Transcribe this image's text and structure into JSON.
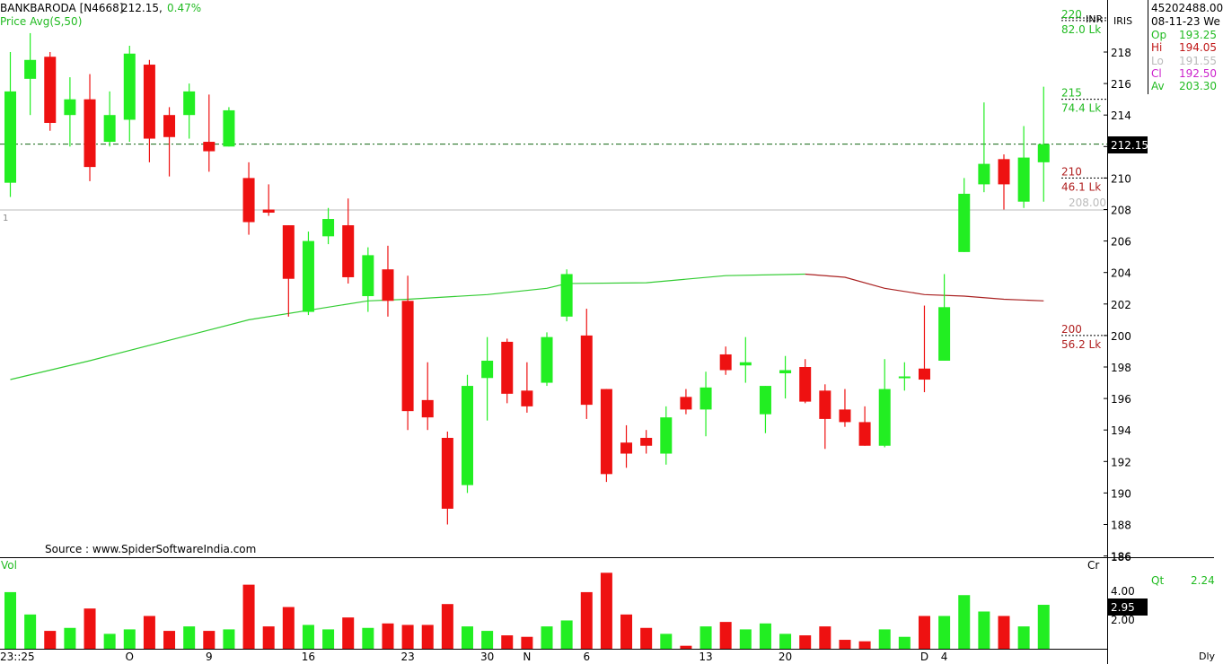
{
  "header": {
    "symbol": "BANKBARODA [N4668]",
    "last": "212.15,",
    "change": "0.47%",
    "indicator": "Price  Avg(S,50)",
    "source": "Source : www.SpiderSoftwareIndia.com",
    "marker_one": "1"
  },
  "info_panel": {
    "volume_total": "45202488.00",
    "date": "08-11-23 We",
    "rows": [
      {
        "label": "Op",
        "value": "193.25",
        "color": "#22bb22"
      },
      {
        "label": "Hi",
        "value": "194.05",
        "color": "#c01818"
      },
      {
        "label": "Lo",
        "value": "191.55",
        "color": "#bbbbbb"
      },
      {
        "label": "Cl",
        "value": "192.50",
        "color": "#cc22cc"
      },
      {
        "label": "Av",
        "value": "203.30",
        "color": "#22bb22"
      }
    ],
    "qt_label": "Qt",
    "qt_value": "2.24",
    "inr": "INR",
    "iris": "IRIS",
    "period": "Dly"
  },
  "volume_panel": {
    "label": "Vol",
    "unit": "Cr",
    "ticks": [
      "4.00",
      "2.00"
    ],
    "last_badge": "2.95"
  },
  "colors": {
    "up": "#22ee22",
    "down": "#ee1111",
    "ma_up": "#33cc33",
    "ma_down": "#aa2222",
    "dashline": "#116611",
    "ref_line": "#bbbbbb"
  },
  "chart_data": {
    "type": "candlestick",
    "title": "BANKBARODA [N4668]",
    "y_range": [
      186,
      221
    ],
    "y_ticks": [
      218,
      216,
      214,
      212,
      210,
      208,
      206,
      204,
      202,
      200,
      198,
      196,
      194,
      192,
      190,
      188,
      186
    ],
    "last_price": "212.15",
    "reference_level": "208.00",
    "x_labels": [
      {
        "label": "23::25",
        "index": 0
      },
      {
        "label": "O",
        "index": 6
      },
      {
        "label": "9",
        "index": 10
      },
      {
        "label": "16",
        "index": 15
      },
      {
        "label": "23",
        "index": 20
      },
      {
        "label": "30",
        "index": 24
      },
      {
        "label": "N",
        "index": 26
      },
      {
        "label": "6",
        "index": 29
      },
      {
        "label": "13",
        "index": 35
      },
      {
        "label": "20",
        "index": 39
      },
      {
        "label": "D",
        "index": 46
      },
      {
        "label": "4",
        "index": 47
      }
    ],
    "volume_profile": [
      {
        "price": "220",
        "volume": "82.0 Lk",
        "color": "#22bb22"
      },
      {
        "price": "215",
        "volume": "74.4 Lk",
        "color": "#22bb22"
      },
      {
        "price": "210",
        "volume": "46.1 Lk",
        "color": "#b02020"
      },
      {
        "price": "200",
        "volume": "56.2 Lk",
        "color": "#b02020"
      }
    ],
    "candles": [
      {
        "o": 209.7,
        "h": 218.0,
        "l": 208.8,
        "c": 215.5,
        "v": 3.8
      },
      {
        "o": 216.3,
        "h": 219.2,
        "l": 214.0,
        "c": 217.5,
        "v": 2.3
      },
      {
        "o": 217.7,
        "h": 218.0,
        "l": 213.0,
        "c": 213.5,
        "v": 1.2
      },
      {
        "o": 214.0,
        "h": 216.4,
        "l": 212.0,
        "c": 215.0,
        "v": 1.4
      },
      {
        "o": 215.0,
        "h": 216.6,
        "l": 209.8,
        "c": 210.7,
        "v": 2.7
      },
      {
        "o": 212.3,
        "h": 215.5,
        "l": 212.0,
        "c": 214.0,
        "v": 1.0
      },
      {
        "o": 213.7,
        "h": 218.4,
        "l": 212.3,
        "c": 217.9,
        "v": 1.3
      },
      {
        "o": 217.2,
        "h": 217.5,
        "l": 211.0,
        "c": 212.5,
        "v": 2.2
      },
      {
        "o": 214.0,
        "h": 214.5,
        "l": 210.1,
        "c": 212.6,
        "v": 1.2
      },
      {
        "o": 214.0,
        "h": 216.0,
        "l": 212.5,
        "c": 215.5,
        "v": 1.5
      },
      {
        "o": 212.3,
        "h": 215.3,
        "l": 210.4,
        "c": 211.7,
        "v": 1.2
      },
      {
        "o": 212.0,
        "h": 214.5,
        "l": 212.0,
        "c": 214.3,
        "v": 1.3
      },
      {
        "o": 210.0,
        "h": 211.0,
        "l": 206.4,
        "c": 207.2,
        "v": 4.3
      },
      {
        "o": 208.0,
        "h": 209.6,
        "l": 207.6,
        "c": 207.8,
        "v": 1.5
      },
      {
        "o": 207.0,
        "h": 207.0,
        "l": 201.2,
        "c": 203.6,
        "v": 2.8
      },
      {
        "o": 201.5,
        "h": 206.6,
        "l": 201.3,
        "c": 206.0,
        "v": 1.6
      },
      {
        "o": 206.3,
        "h": 208.1,
        "l": 205.8,
        "c": 207.4,
        "v": 1.3
      },
      {
        "o": 207.0,
        "h": 208.7,
        "l": 203.3,
        "c": 203.7,
        "v": 2.1
      },
      {
        "o": 202.5,
        "h": 205.6,
        "l": 201.5,
        "c": 205.1,
        "v": 1.4
      },
      {
        "o": 204.2,
        "h": 205.7,
        "l": 201.2,
        "c": 202.2,
        "v": 1.7
      },
      {
        "o": 202.2,
        "h": 203.8,
        "l": 194.0,
        "c": 195.2,
        "v": 1.6
      },
      {
        "o": 195.9,
        "h": 198.3,
        "l": 194.0,
        "c": 194.8,
        "v": 1.6
      },
      {
        "o": 193.5,
        "h": 193.9,
        "l": 188.0,
        "c": 189.0,
        "v": 3.0
      },
      {
        "o": 190.5,
        "h": 197.5,
        "l": 190.0,
        "c": 196.8,
        "v": 1.5
      },
      {
        "o": 197.3,
        "h": 199.9,
        "l": 194.6,
        "c": 198.4,
        "v": 1.2
      },
      {
        "o": 199.6,
        "h": 199.8,
        "l": 195.7,
        "c": 196.3,
        "v": 0.9
      },
      {
        "o": 196.5,
        "h": 198.3,
        "l": 195.1,
        "c": 195.5,
        "v": 0.8
      },
      {
        "o": 197.0,
        "h": 200.2,
        "l": 196.8,
        "c": 199.9,
        "v": 1.5
      },
      {
        "o": 201.2,
        "h": 204.2,
        "l": 200.9,
        "c": 203.9,
        "v": 1.9
      },
      {
        "o": 200.0,
        "h": 201.7,
        "l": 194.7,
        "c": 195.6,
        "v": 3.8
      },
      {
        "o": 196.6,
        "h": 196.6,
        "l": 190.7,
        "c": 191.2,
        "v": 5.1
      },
      {
        "o": 193.2,
        "h": 194.3,
        "l": 191.6,
        "c": 192.5,
        "v": 2.3
      },
      {
        "o": 193.5,
        "h": 194.0,
        "l": 192.5,
        "c": 193.0,
        "v": 1.4
      },
      {
        "o": 192.5,
        "h": 195.5,
        "l": 191.8,
        "c": 194.8,
        "v": 1.0
      },
      {
        "o": 196.1,
        "h": 196.6,
        "l": 195.0,
        "c": 195.3,
        "v": 0.2
      },
      {
        "o": 195.3,
        "h": 197.7,
        "l": 193.6,
        "c": 196.7,
        "v": 1.5
      },
      {
        "o": 198.8,
        "h": 199.3,
        "l": 197.5,
        "c": 197.8,
        "v": 1.8
      },
      {
        "o": 198.1,
        "h": 199.9,
        "l": 197.0,
        "c": 198.3,
        "v": 1.3
      },
      {
        "o": 195.0,
        "h": 196.8,
        "l": 193.8,
        "c": 196.8,
        "v": 1.7
      },
      {
        "o": 197.6,
        "h": 198.7,
        "l": 196.0,
        "c": 197.8,
        "v": 1.0
      },
      {
        "o": 198.0,
        "h": 198.5,
        "l": 195.7,
        "c": 195.8,
        "v": 0.9
      },
      {
        "o": 196.5,
        "h": 196.9,
        "l": 192.8,
        "c": 194.7,
        "v": 1.5
      },
      {
        "o": 195.3,
        "h": 196.6,
        "l": 194.2,
        "c": 194.5,
        "v": 0.6
      },
      {
        "o": 194.5,
        "h": 195.5,
        "l": 193.0,
        "c": 193.0,
        "v": 0.5
      },
      {
        "o": 193.0,
        "h": 198.5,
        "l": 192.9,
        "c": 196.6,
        "v": 1.3
      },
      {
        "o": 197.4,
        "h": 198.3,
        "l": 196.5,
        "c": 197.4,
        "v": 0.8
      },
      {
        "o": 197.9,
        "h": 201.9,
        "l": 196.4,
        "c": 197.2,
        "v": 2.2
      },
      {
        "o": 198.4,
        "h": 203.9,
        "l": 198.4,
        "c": 201.8,
        "v": 2.2
      },
      {
        "o": 205.3,
        "h": 210.0,
        "l": 205.3,
        "c": 209.0,
        "v": 3.6
      },
      {
        "o": 209.6,
        "h": 214.8,
        "l": 209.1,
        "c": 210.9,
        "v": 2.5
      },
      {
        "o": 211.2,
        "h": 211.5,
        "l": 208.0,
        "c": 209.6,
        "v": 2.2
      },
      {
        "o": 208.5,
        "h": 213.3,
        "l": 208.1,
        "c": 211.3,
        "v": 1.5
      },
      {
        "o": 211.0,
        "h": 215.8,
        "l": 208.5,
        "c": 212.15,
        "v": 2.95
      }
    ],
    "moving_average": {
      "name": "Avg(S,50)",
      "points": [
        [
          0,
          197.2
        ],
        [
          4,
          198.4
        ],
        [
          8,
          199.7
        ],
        [
          12,
          201.0
        ],
        [
          16,
          201.8
        ],
        [
          18,
          202.2
        ],
        [
          20,
          202.3
        ],
        [
          24,
          202.6
        ],
        [
          27,
          203.0
        ],
        [
          28,
          203.3
        ],
        [
          32,
          203.35
        ],
        [
          36,
          203.8
        ],
        [
          40,
          203.9
        ],
        [
          42,
          203.7
        ],
        [
          44,
          203.0
        ],
        [
          46,
          202.6
        ],
        [
          48,
          202.5
        ],
        [
          50,
          202.3
        ],
        [
          52,
          202.2
        ]
      ],
      "turn_index": 40
    }
  }
}
